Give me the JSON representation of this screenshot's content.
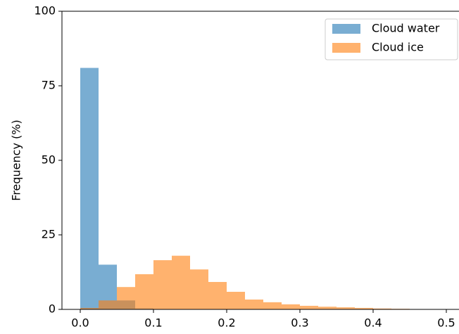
{
  "chart_data": {
    "type": "histogram",
    "ylabel": "Frequency (%)",
    "bins": [
      0,
      0.025,
      0.05,
      0.075,
      0.1,
      0.125,
      0.15,
      0.175,
      0.2,
      0.225,
      0.25,
      0.275,
      0.3,
      0.325,
      0.35,
      0.375,
      0.4,
      0.425,
      0.45,
      0.475,
      0.5
    ],
    "series": [
      {
        "name": "Cloud water",
        "color": "#1f77b4",
        "values": [
          81,
          15,
          3,
          0.3,
          0.1,
          0,
          0,
          0,
          0,
          0,
          0,
          0,
          0,
          0,
          0,
          0,
          0,
          0,
          0,
          0
        ]
      },
      {
        "name": "Cloud ice",
        "color": "#ff7f0e",
        "values": [
          0.5,
          3,
          7.5,
          11.8,
          16.5,
          18,
          13.4,
          9.2,
          5.9,
          3.3,
          2.4,
          1.7,
          1.2,
          0.9,
          0.7,
          0.5,
          0.3,
          0.2,
          0,
          0
        ]
      }
    ],
    "opacity": 0.6,
    "xlim": [
      -0.025,
      0.525
    ],
    "ylim": [
      0,
      100
    ],
    "xticks": [
      {
        "value": 0,
        "label": "0.0"
      },
      0.1,
      0.2,
      0.3,
      0.4,
      0.5
    ],
    "yticks": [
      0,
      25,
      50,
      75,
      100
    ],
    "legend": "upper right"
  }
}
